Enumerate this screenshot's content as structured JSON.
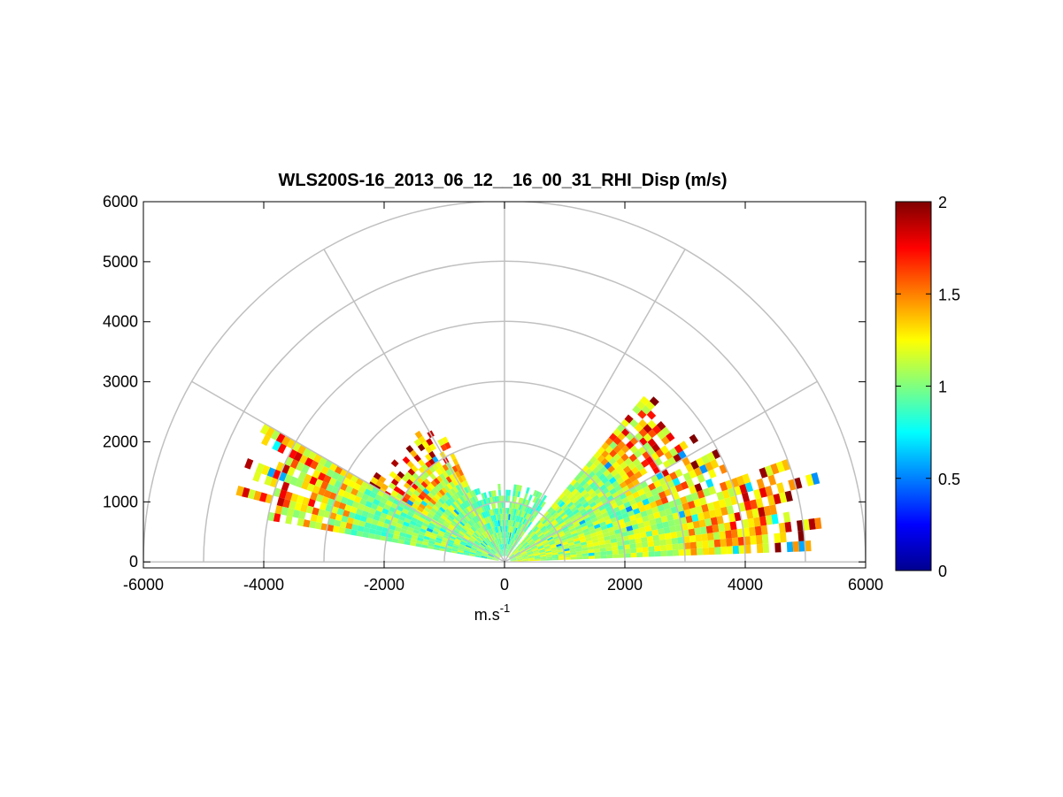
{
  "chart_data": {
    "type": "heatmap",
    "subtype": "polar-rhi-sector",
    "title": "WLS200S-16_2013_06_12__16_00_31_RHI_Disp (m/s)",
    "xlabel": "m.s",
    "xlabel_superscript": "-1",
    "ylabel": "",
    "xlim": [
      -6000,
      6000
    ],
    "ylim": [
      -100,
      6000
    ],
    "xticks": [
      -6000,
      -4000,
      -2000,
      0,
      2000,
      4000,
      6000
    ],
    "yticks": [
      0,
      1000,
      2000,
      3000,
      4000,
      5000,
      6000
    ],
    "polar_grid": {
      "radii": [
        1000,
        2000,
        3000,
        4000,
        5000,
        6000
      ],
      "spokes_deg": [
        0,
        30,
        60,
        90,
        120,
        150,
        180
      ],
      "color": "#c0c0c0"
    },
    "colorbar": {
      "colormap": "jet",
      "range": [
        0,
        2
      ],
      "ticks": [
        0,
        0.5,
        1,
        1.5,
        2
      ]
    },
    "data_description": {
      "sectors": [
        {
          "name": "right-low",
          "az_deg": [
            2,
            20
          ],
          "range_m": [
            0,
            5400
          ],
          "typical_value": 1.1,
          "high_far": true
        },
        {
          "name": "right-mid",
          "az_deg": [
            20,
            50
          ],
          "range_m": [
            0,
            4000
          ],
          "typical_value": 1.05,
          "high_far": true
        },
        {
          "name": "center",
          "az_deg": [
            55,
            125
          ],
          "range_m": [
            0,
            1300
          ],
          "typical_value": 0.95,
          "high_far": false
        },
        {
          "name": "left-mid",
          "az_deg": [
            115,
            150
          ],
          "range_m": [
            0,
            2600
          ],
          "typical_value": 1.05,
          "high_far": true
        },
        {
          "name": "left-low",
          "az_deg": [
            150,
            170
          ],
          "range_m": [
            0,
            4600
          ],
          "typical_value": 1.0,
          "high_far": true
        }
      ],
      "range_gate_m": 100,
      "beam_width_deg": 2
    }
  }
}
